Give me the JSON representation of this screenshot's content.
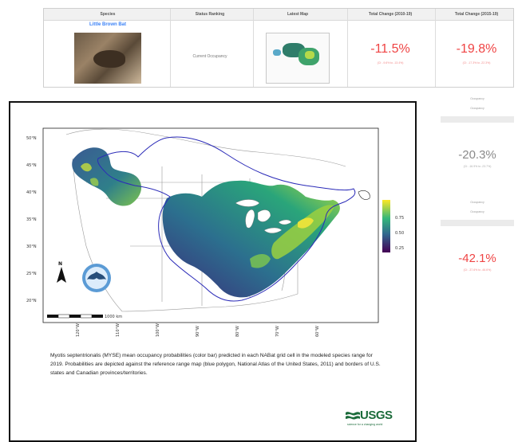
{
  "table": {
    "headers": [
      "Species",
      "Status Ranking",
      "Latest Map",
      "Total Change (2010-19)",
      "Total Change (2015-19)"
    ],
    "row": {
      "species_name": "Little Brown Bat",
      "status": "Current Occupancy",
      "change_2010": "-11.5%",
      "change_2010_ci": "(CI: -9.6% to -13.4%)",
      "change_2015": "-19.8%",
      "change_2015_ci": "(CI: -17.3% to -22.3%)"
    }
  },
  "right_column": {
    "rows": [
      "Occupancy",
      "Occupancy",
      "Occupancy",
      "Occupancy"
    ],
    "values": [
      {
        "value": "-20.3%",
        "ci": "(CI: -16.9% to -23.7%)",
        "color": "#8a8a8a"
      },
      {
        "value": "-42.1%",
        "ci": "(CI: -37.6% to -46.6%)",
        "color": "#ef4444"
      }
    ]
  },
  "modal": {
    "map": {
      "lat_ticks": [
        "50°N",
        "45°N",
        "40°N",
        "35°N",
        "30°N",
        "25°N",
        "20°N"
      ],
      "lon_ticks": [
        "120°W",
        "110°W",
        "100°W",
        "90°W",
        "80°W",
        "70°W",
        "60°W"
      ],
      "legend_ticks": [
        "0.75",
        "0.50",
        "0.25"
      ],
      "scale_label": "1000 km",
      "north_label": "N",
      "colors": {
        "low": "#440154",
        "mid": "#21918c",
        "high": "#fde725",
        "range": "#2b2bb8"
      }
    },
    "caption": "Myotis septentrionalis (MYSE) mean occupancy probabilities (color bar) predicted in each NABat grid cell in the modeled species range for 2019. Probabilities are depicted against the reference range map (blue polygon, National Atlas of the United States, 2011) and borders of U.S. states and Canadian provinces/territories.",
    "logo_text": "USGS",
    "logo_tagline": "science for a changing world"
  }
}
